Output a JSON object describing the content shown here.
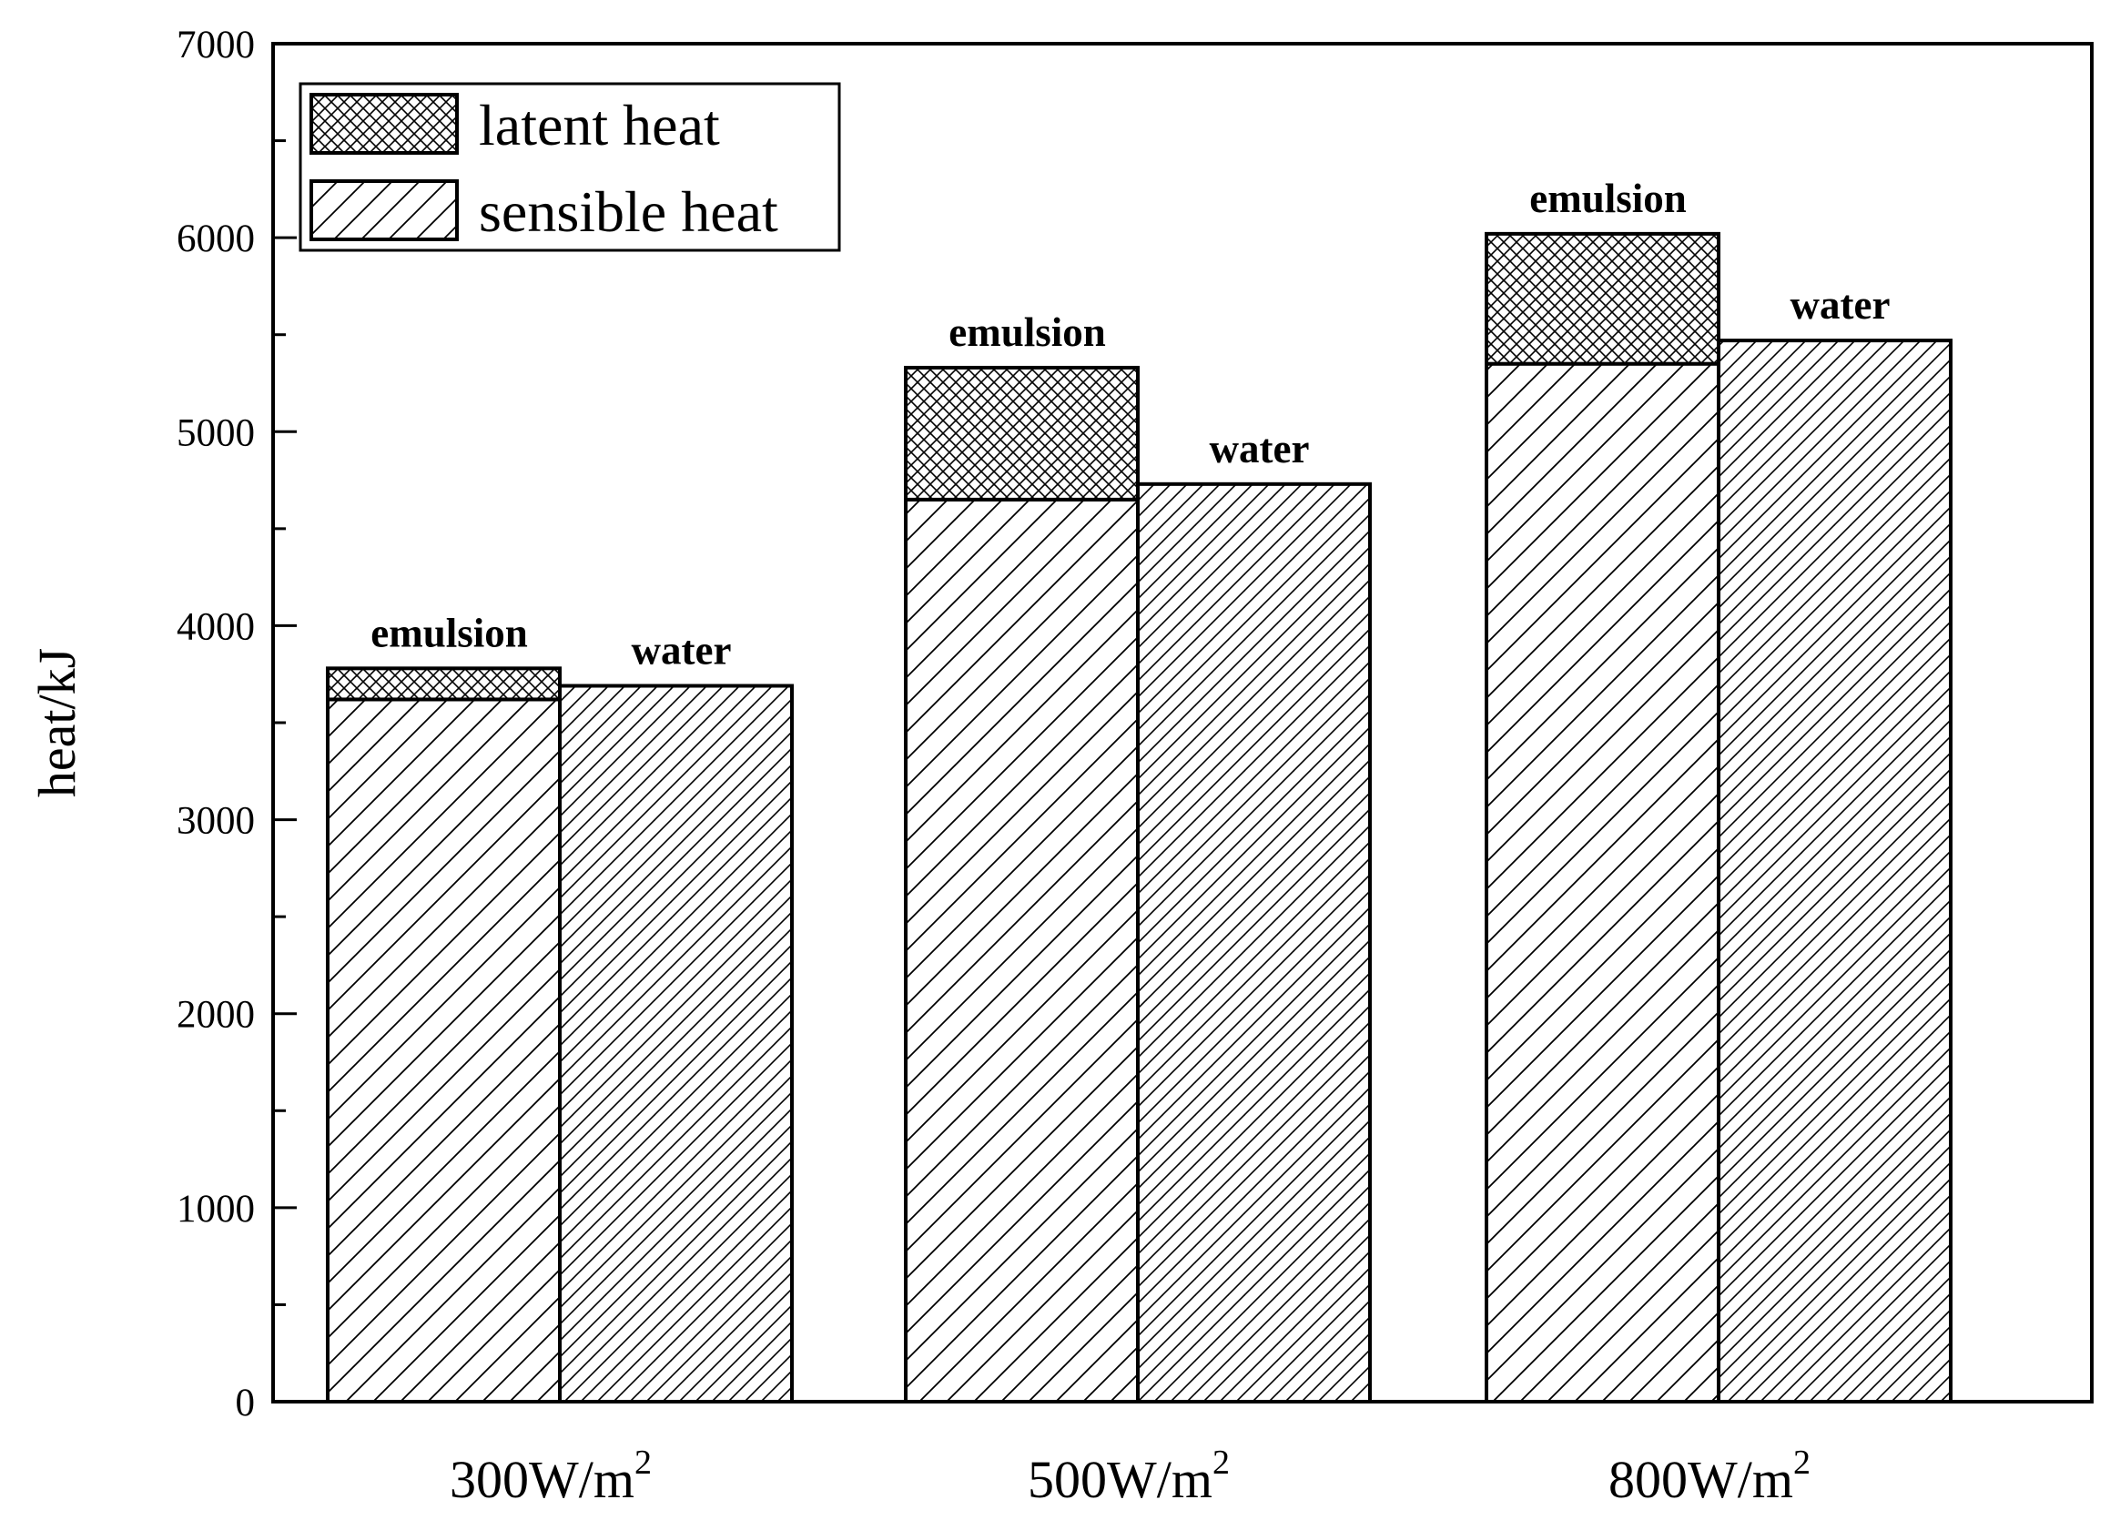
{
  "chart_data": {
    "type": "bar",
    "subtype": "grouped-stacked",
    "title": "",
    "xlabel": "",
    "ylabel": "heat/kJ",
    "ylim": [
      0,
      7000
    ],
    "yticks": [
      0,
      1000,
      2000,
      3000,
      4000,
      5000,
      6000,
      7000
    ],
    "categories": [
      {
        "base": "300W/m",
        "sup": "2"
      },
      {
        "base": "500W/m",
        "sup": "2"
      },
      {
        "base": "800W/m",
        "sup": "2"
      }
    ],
    "groups": [
      {
        "name": "emulsion",
        "sensible": [
          3620,
          4650,
          5350
        ],
        "latent": [
          160,
          680,
          670
        ]
      },
      {
        "name": "water",
        "sensible": [
          3690,
          4730,
          5470
        ],
        "latent": [
          0,
          0,
          0
        ]
      }
    ],
    "legend": {
      "position": "top-left",
      "entries": [
        {
          "label": "latent heat",
          "pattern": "crosshatch"
        },
        {
          "label": "sensible heat",
          "pattern": "diagonal-hatch"
        }
      ]
    },
    "colors": {
      "stroke": "#000000",
      "background": "#ffffff"
    }
  }
}
